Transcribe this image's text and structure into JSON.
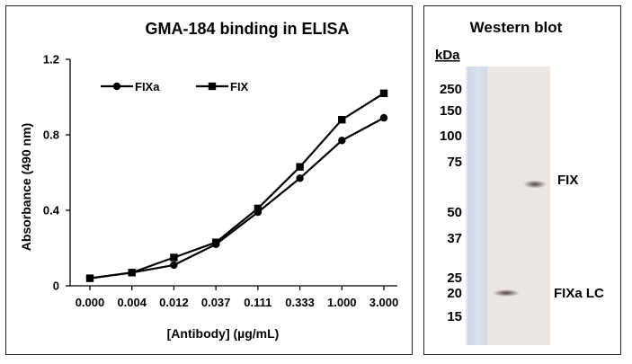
{
  "chart_data": [
    {
      "type": "line",
      "title": "GMA-184 binding in ELISA",
      "xlabel": "[Antibody] (µg/mL)",
      "ylabel": "Absorbance (490 nm)",
      "categories": [
        "0.000",
        "0.004",
        "0.012",
        "0.037",
        "0.111",
        "0.333",
        "1.000",
        "3.000"
      ],
      "y_ticks": [
        "0",
        "0.4",
        "0.8",
        "1.2"
      ],
      "ylim": [
        0,
        1.2
      ],
      "legend": "top-left",
      "grid": false,
      "series": [
        {
          "name": "FIXa",
          "marker": "circle",
          "values": [
            0.04,
            0.07,
            0.11,
            0.22,
            0.39,
            0.57,
            0.77,
            0.89
          ]
        },
        {
          "name": "FIX",
          "marker": "square",
          "values": [
            0.04,
            0.07,
            0.15,
            0.23,
            0.41,
            0.63,
            0.88,
            1.02
          ]
        }
      ]
    }
  ],
  "western_blot": {
    "title": "Western blot",
    "unit_label": "kDa",
    "markers": [
      "250",
      "150",
      "100",
      "75",
      "50",
      "37",
      "25",
      "20",
      "15"
    ],
    "bands": [
      {
        "label": "FIX"
      },
      {
        "label": "FIXa LC"
      }
    ]
  }
}
